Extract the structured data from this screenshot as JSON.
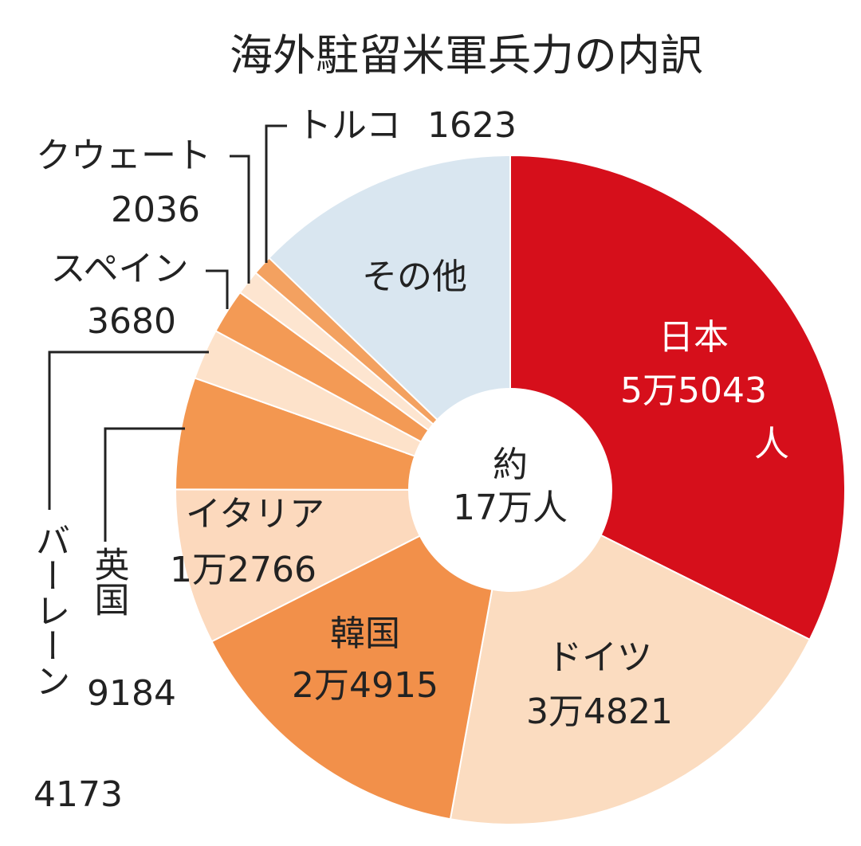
{
  "chart_data": {
    "type": "pie",
    "title": "海外駐留米軍兵力の内訳",
    "center_label": [
      "約",
      "17万人"
    ],
    "total": 170000,
    "slices": [
      {
        "name": "日本",
        "value": 55043,
        "value_text": [
          "5万5043",
          "人"
        ],
        "color": "#d60f1b"
      },
      {
        "name": "ドイツ",
        "value": 34821,
        "value_text": [
          "3万4821"
        ],
        "color": "#fbdcc0"
      },
      {
        "name": "韓国",
        "value": 24915,
        "value_text": [
          "2万4915"
        ],
        "color": "#f2904a"
      },
      {
        "name": "イタリア",
        "value": 12766,
        "value_text": [
          "1万2766"
        ],
        "color": "#fcd9bd"
      },
      {
        "name": "英国",
        "value": 9184,
        "value_text": [
          "9184"
        ],
        "color": "#f39750"
      },
      {
        "name": "バーレーン",
        "value": 4173,
        "value_text": [
          "4173"
        ],
        "color": "#fde2ca"
      },
      {
        "name": "スペイン",
        "value": 3680,
        "value_text": [
          "3680"
        ],
        "color": "#f39a55"
      },
      {
        "name": "クウェート",
        "value": 2036,
        "value_text": [
          "2036"
        ],
        "color": "#fde5d0"
      },
      {
        "name": "トルコ",
        "value": 1623,
        "value_text": [
          "1623"
        ],
        "color": "#f3a160"
      },
      {
        "name": "その他",
        "value": 21759,
        "value_text": [],
        "color": "#d9e6f0"
      }
    ]
  }
}
